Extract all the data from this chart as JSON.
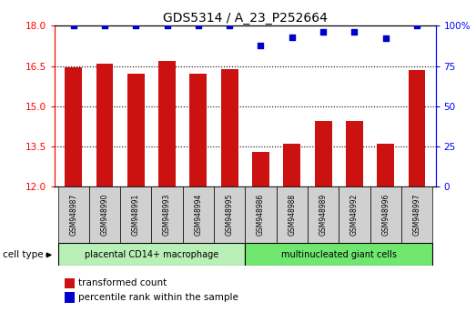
{
  "title": "GDS5314 / A_23_P252664",
  "samples": [
    "GSM948987",
    "GSM948990",
    "GSM948991",
    "GSM948993",
    "GSM948994",
    "GSM948995",
    "GSM948986",
    "GSM948988",
    "GSM948989",
    "GSM948992",
    "GSM948996",
    "GSM948997"
  ],
  "transformed_count": [
    16.45,
    16.6,
    16.2,
    16.7,
    16.2,
    16.38,
    13.3,
    13.6,
    14.45,
    14.45,
    13.6,
    16.35
  ],
  "percentile_rank": [
    100,
    100,
    100,
    100,
    100,
    100,
    88,
    93,
    96,
    96,
    92,
    100
  ],
  "group1_label": "placental CD14+ macrophage",
  "group2_label": "multinucleated giant cells",
  "group1_color": "#b8f0b8",
  "group2_color": "#70e870",
  "bar_color": "#cc1111",
  "dot_color": "#0000cc",
  "ylim_left": [
    12,
    18
  ],
  "ylim_right": [
    0,
    100
  ],
  "yticks_left": [
    12,
    13.5,
    15,
    16.5,
    18
  ],
  "yticks_right": [
    0,
    25,
    50,
    75,
    100
  ],
  "sample_bg_color": "#d0d0d0",
  "legend_red_label": "transformed count",
  "legend_blue_label": "percentile rank within the sample",
  "cell_type_label": "cell type"
}
